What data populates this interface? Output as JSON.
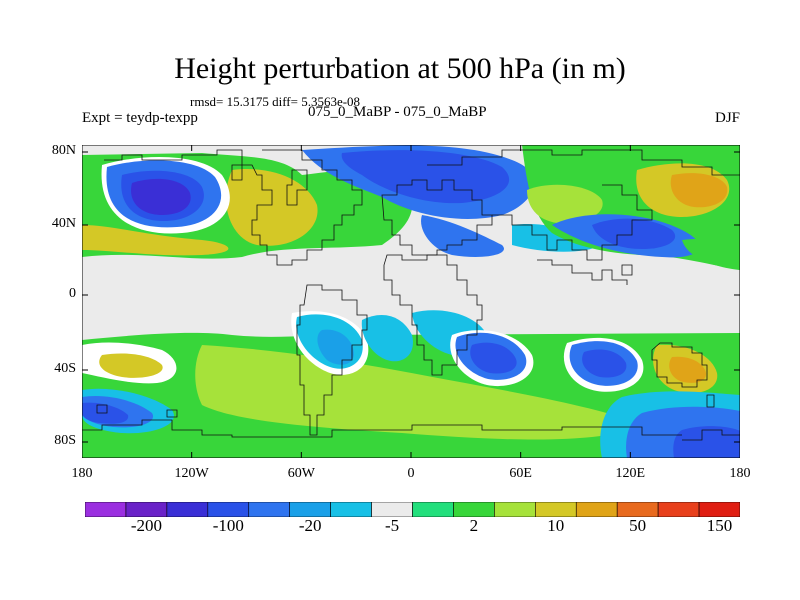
{
  "title": "Height perturbation at 500 hPa (in m)",
  "stats": "rmsd= 15.3175 diff= 5.3563e-08",
  "left_label": "Expt = teydp-texpp",
  "center_label": "075_0_MaBP - 075_0_MaBP",
  "right_label": "DJF",
  "axes": {
    "y_ticks": [
      "80N",
      "40N",
      "0",
      "40S",
      "80S"
    ],
    "x_ticks": [
      "180",
      "120W",
      "60W",
      "0",
      "60E",
      "120E",
      "180"
    ]
  },
  "colorbar": {
    "colors": [
      "#9b2fe0",
      "#6a22c8",
      "#3a2fd6",
      "#2a52e8",
      "#2f74ef",
      "#1aa0e8",
      "#18c0e6",
      "#ebebeb",
      "#22df7c",
      "#38d63a",
      "#a6e23a",
      "#d4c826",
      "#e0a418",
      "#e86a1e",
      "#e8401c",
      "#e01e12"
    ],
    "labels": [
      "-200",
      "-100",
      "-20",
      "-5",
      "2",
      "10",
      "50",
      "150"
    ]
  },
  "map_colors": {
    "background": "#ebebeb",
    "blue_dark": "#3a2fd6",
    "blue": "#2a52e8",
    "blue_mid": "#2f74ef",
    "cyan": "#1aa0e8",
    "cyan_light": "#18c0e6",
    "green_teal": "#22df7c",
    "green": "#38d63a",
    "yellow_green": "#a6e23a",
    "yellow": "#d4c826",
    "orange_yellow": "#e0a418"
  }
}
